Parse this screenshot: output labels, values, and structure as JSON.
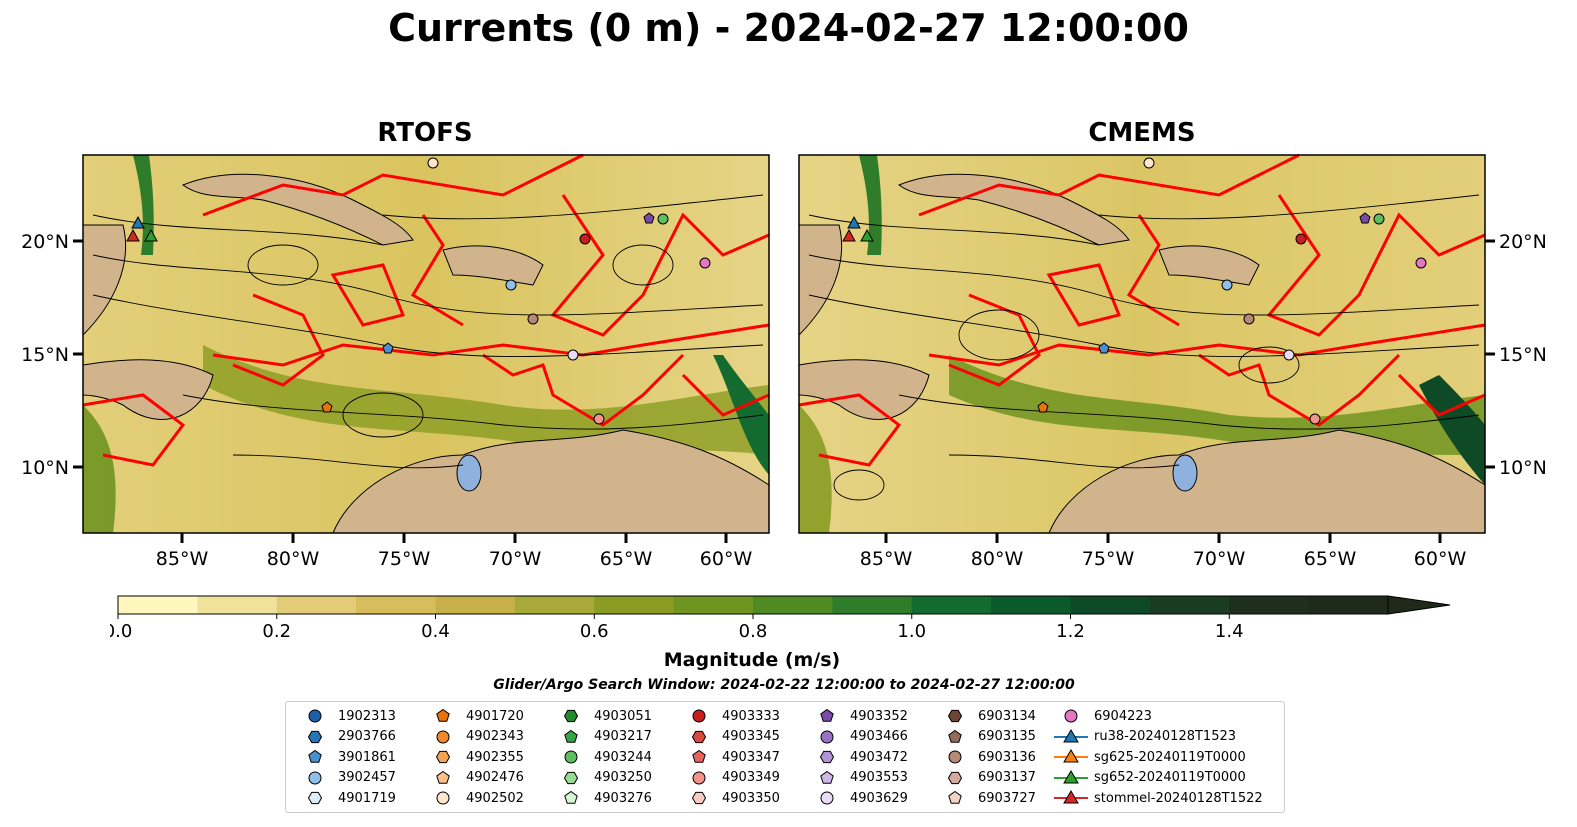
{
  "title": "Currents (0 m) - 2024-02-27 12:00:00",
  "panels": [
    {
      "name": "RTOFS"
    },
    {
      "name": "CMEMS"
    }
  ],
  "map": {
    "lon_ticks": [
      "85°W",
      "80°W",
      "75°W",
      "70°W",
      "65°W",
      "60°W"
    ],
    "lat_ticks": [
      "20°N",
      "15°N",
      "10°N"
    ],
    "extent": {
      "lon_min": -89.5,
      "lon_max": -58.5,
      "lat_min": 7.0,
      "lat_max": 24.0
    },
    "land_color": "#d2b48c",
    "lake_color": "#8eb1dd",
    "track_color": "#ff0000"
  },
  "colorbar": {
    "label": "Magnitude (m/s)",
    "ticks": [
      "0.0",
      "0.2",
      "0.4",
      "0.6",
      "0.8",
      "1.0",
      "1.2",
      "1.4"
    ],
    "min": 0.0,
    "max": 1.6,
    "extend": "max",
    "colors": [
      "#fff7bd",
      "#f0e29a",
      "#e2cc78",
      "#d7bd5c",
      "#c8b14a",
      "#a9a83a",
      "#8a9c22",
      "#6f9420",
      "#4f8a22",
      "#2f7d2a",
      "#136b2f",
      "#0b5a2b",
      "#0f4a26",
      "#1a3c20",
      "#1e2f1b",
      "#1f2a1a"
    ]
  },
  "search_window": "Glider/Argo Search Window: 2024-02-22 12:00:00 to 2024-02-27 12:00:00",
  "legend": {
    "columns": [
      [
        {
          "label": "1902313",
          "marker": "circle",
          "color": "#1f5fa8"
        },
        {
          "label": "2903766",
          "marker": "hexagon",
          "color": "#2a73b5"
        },
        {
          "label": "3901861",
          "marker": "pentagon",
          "color": "#4a8fd0"
        },
        {
          "label": "3902457",
          "marker": "circle",
          "color": "#8fc0ea"
        },
        {
          "label": "4901719",
          "marker": "hexagon",
          "color": "#dcecfa"
        }
      ],
      [
        {
          "label": "4901720",
          "marker": "pentagon",
          "color": "#e8720c"
        },
        {
          "label": "4902343",
          "marker": "circle",
          "color": "#f08a2a"
        },
        {
          "label": "4902355",
          "marker": "hexagon",
          "color": "#f6a454"
        },
        {
          "label": "4902476",
          "marker": "pentagon",
          "color": "#f8c08a"
        },
        {
          "label": "4902502",
          "marker": "circle",
          "color": "#fde6cc"
        }
      ],
      [
        {
          "label": "4903051",
          "marker": "hexagon",
          "color": "#1f8a2e"
        },
        {
          "label": "4903217",
          "marker": "pentagon",
          "color": "#38a448"
        },
        {
          "label": "4903244",
          "marker": "circle",
          "color": "#5cc060"
        },
        {
          "label": "4903250",
          "marker": "hexagon",
          "color": "#96dc96"
        },
        {
          "label": "4903276",
          "marker": "pentagon",
          "color": "#d6f5d2"
        }
      ],
      [
        {
          "label": "4903333",
          "marker": "circle",
          "color": "#c81e1e"
        },
        {
          "label": "4903345",
          "marker": "hexagon",
          "color": "#d84a3e"
        },
        {
          "label": "4903347",
          "marker": "pentagon",
          "color": "#e6655e"
        },
        {
          "label": "4903349",
          "marker": "circle",
          "color": "#f2938c"
        },
        {
          "label": "4903350",
          "marker": "hexagon",
          "color": "#fbc9c3"
        }
      ],
      [
        {
          "label": "4903352",
          "marker": "pentagon",
          "color": "#7a4aa8"
        },
        {
          "label": "4903466",
          "marker": "circle",
          "color": "#9a72c4"
        },
        {
          "label": "4903472",
          "marker": "hexagon",
          "color": "#b294d6"
        },
        {
          "label": "4903553",
          "marker": "pentagon",
          "color": "#cfb8e8"
        },
        {
          "label": "4903629",
          "marker": "circle",
          "color": "#e8dcf6"
        }
      ],
      [
        {
          "label": "6903134",
          "marker": "hexagon",
          "color": "#6e4636"
        },
        {
          "label": "6903135",
          "marker": "pentagon",
          "color": "#946a58"
        },
        {
          "label": "6903136",
          "marker": "circle",
          "color": "#b68878"
        },
        {
          "label": "6903137",
          "marker": "hexagon",
          "color": "#d4aa9c"
        },
        {
          "label": "6903727",
          "marker": "pentagon",
          "color": "#f0d4c8"
        }
      ],
      [
        {
          "label": "6904223",
          "marker": "circle",
          "color": "#e377c2"
        },
        {
          "label": "ru38-20240128T1523",
          "marker": "triangle",
          "color": "#1f77b4"
        },
        {
          "label": "sg625-20240119T0000",
          "marker": "triangle",
          "color": "#ff7f0e"
        },
        {
          "label": "sg652-20240119T0000",
          "marker": "triangle",
          "color": "#2ca02c"
        },
        {
          "label": "stommel-20240128T1522",
          "marker": "triangle",
          "color": "#d62728"
        }
      ]
    ]
  }
}
